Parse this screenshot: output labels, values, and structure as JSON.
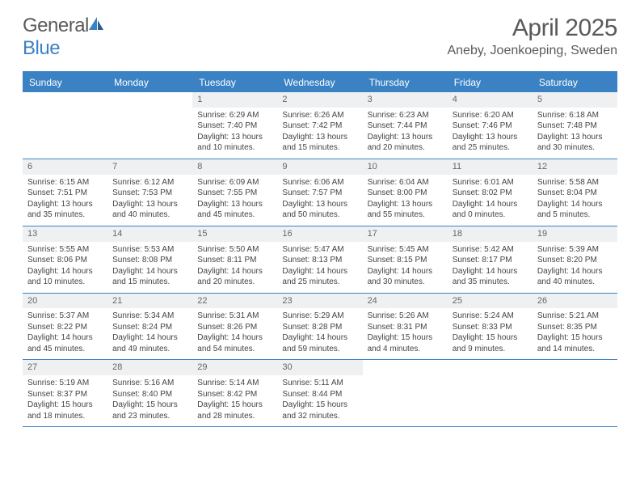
{
  "brand": {
    "part1": "General",
    "part2": "Blue"
  },
  "title": "April 2025",
  "location": "Aneby, Joenkoeping, Sweden",
  "colors": {
    "accent": "#3b82c4",
    "header_bg": "#3b82c4",
    "daynum_bg": "#eef0f2",
    "text": "#444444",
    "title_text": "#5a5a5a"
  },
  "day_labels": [
    "Sunday",
    "Monday",
    "Tuesday",
    "Wednesday",
    "Thursday",
    "Friday",
    "Saturday"
  ],
  "weeks": [
    [
      {
        "empty": true
      },
      {
        "empty": true
      },
      {
        "n": "1",
        "sunrise": "Sunrise: 6:29 AM",
        "sunset": "Sunset: 7:40 PM",
        "daylight": "Daylight: 13 hours and 10 minutes."
      },
      {
        "n": "2",
        "sunrise": "Sunrise: 6:26 AM",
        "sunset": "Sunset: 7:42 PM",
        "daylight": "Daylight: 13 hours and 15 minutes."
      },
      {
        "n": "3",
        "sunrise": "Sunrise: 6:23 AM",
        "sunset": "Sunset: 7:44 PM",
        "daylight": "Daylight: 13 hours and 20 minutes."
      },
      {
        "n": "4",
        "sunrise": "Sunrise: 6:20 AM",
        "sunset": "Sunset: 7:46 PM",
        "daylight": "Daylight: 13 hours and 25 minutes."
      },
      {
        "n": "5",
        "sunrise": "Sunrise: 6:18 AM",
        "sunset": "Sunset: 7:48 PM",
        "daylight": "Daylight: 13 hours and 30 minutes."
      }
    ],
    [
      {
        "n": "6",
        "sunrise": "Sunrise: 6:15 AM",
        "sunset": "Sunset: 7:51 PM",
        "daylight": "Daylight: 13 hours and 35 minutes."
      },
      {
        "n": "7",
        "sunrise": "Sunrise: 6:12 AM",
        "sunset": "Sunset: 7:53 PM",
        "daylight": "Daylight: 13 hours and 40 minutes."
      },
      {
        "n": "8",
        "sunrise": "Sunrise: 6:09 AM",
        "sunset": "Sunset: 7:55 PM",
        "daylight": "Daylight: 13 hours and 45 minutes."
      },
      {
        "n": "9",
        "sunrise": "Sunrise: 6:06 AM",
        "sunset": "Sunset: 7:57 PM",
        "daylight": "Daylight: 13 hours and 50 minutes."
      },
      {
        "n": "10",
        "sunrise": "Sunrise: 6:04 AM",
        "sunset": "Sunset: 8:00 PM",
        "daylight": "Daylight: 13 hours and 55 minutes."
      },
      {
        "n": "11",
        "sunrise": "Sunrise: 6:01 AM",
        "sunset": "Sunset: 8:02 PM",
        "daylight": "Daylight: 14 hours and 0 minutes."
      },
      {
        "n": "12",
        "sunrise": "Sunrise: 5:58 AM",
        "sunset": "Sunset: 8:04 PM",
        "daylight": "Daylight: 14 hours and 5 minutes."
      }
    ],
    [
      {
        "n": "13",
        "sunrise": "Sunrise: 5:55 AM",
        "sunset": "Sunset: 8:06 PM",
        "daylight": "Daylight: 14 hours and 10 minutes."
      },
      {
        "n": "14",
        "sunrise": "Sunrise: 5:53 AM",
        "sunset": "Sunset: 8:08 PM",
        "daylight": "Daylight: 14 hours and 15 minutes."
      },
      {
        "n": "15",
        "sunrise": "Sunrise: 5:50 AM",
        "sunset": "Sunset: 8:11 PM",
        "daylight": "Daylight: 14 hours and 20 minutes."
      },
      {
        "n": "16",
        "sunrise": "Sunrise: 5:47 AM",
        "sunset": "Sunset: 8:13 PM",
        "daylight": "Daylight: 14 hours and 25 minutes."
      },
      {
        "n": "17",
        "sunrise": "Sunrise: 5:45 AM",
        "sunset": "Sunset: 8:15 PM",
        "daylight": "Daylight: 14 hours and 30 minutes."
      },
      {
        "n": "18",
        "sunrise": "Sunrise: 5:42 AM",
        "sunset": "Sunset: 8:17 PM",
        "daylight": "Daylight: 14 hours and 35 minutes."
      },
      {
        "n": "19",
        "sunrise": "Sunrise: 5:39 AM",
        "sunset": "Sunset: 8:20 PM",
        "daylight": "Daylight: 14 hours and 40 minutes."
      }
    ],
    [
      {
        "n": "20",
        "sunrise": "Sunrise: 5:37 AM",
        "sunset": "Sunset: 8:22 PM",
        "daylight": "Daylight: 14 hours and 45 minutes."
      },
      {
        "n": "21",
        "sunrise": "Sunrise: 5:34 AM",
        "sunset": "Sunset: 8:24 PM",
        "daylight": "Daylight: 14 hours and 49 minutes."
      },
      {
        "n": "22",
        "sunrise": "Sunrise: 5:31 AM",
        "sunset": "Sunset: 8:26 PM",
        "daylight": "Daylight: 14 hours and 54 minutes."
      },
      {
        "n": "23",
        "sunrise": "Sunrise: 5:29 AM",
        "sunset": "Sunset: 8:28 PM",
        "daylight": "Daylight: 14 hours and 59 minutes."
      },
      {
        "n": "24",
        "sunrise": "Sunrise: 5:26 AM",
        "sunset": "Sunset: 8:31 PM",
        "daylight": "Daylight: 15 hours and 4 minutes."
      },
      {
        "n": "25",
        "sunrise": "Sunrise: 5:24 AM",
        "sunset": "Sunset: 8:33 PM",
        "daylight": "Daylight: 15 hours and 9 minutes."
      },
      {
        "n": "26",
        "sunrise": "Sunrise: 5:21 AM",
        "sunset": "Sunset: 8:35 PM",
        "daylight": "Daylight: 15 hours and 14 minutes."
      }
    ],
    [
      {
        "n": "27",
        "sunrise": "Sunrise: 5:19 AM",
        "sunset": "Sunset: 8:37 PM",
        "daylight": "Daylight: 15 hours and 18 minutes."
      },
      {
        "n": "28",
        "sunrise": "Sunrise: 5:16 AM",
        "sunset": "Sunset: 8:40 PM",
        "daylight": "Daylight: 15 hours and 23 minutes."
      },
      {
        "n": "29",
        "sunrise": "Sunrise: 5:14 AM",
        "sunset": "Sunset: 8:42 PM",
        "daylight": "Daylight: 15 hours and 28 minutes."
      },
      {
        "n": "30",
        "sunrise": "Sunrise: 5:11 AM",
        "sunset": "Sunset: 8:44 PM",
        "daylight": "Daylight: 15 hours and 32 minutes."
      },
      {
        "empty": true
      },
      {
        "empty": true
      },
      {
        "empty": true
      }
    ]
  ]
}
